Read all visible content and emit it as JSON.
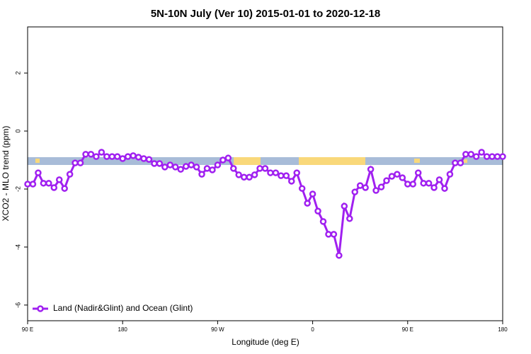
{
  "chart_data": {
    "type": "line",
    "title": "5N-10N July (Ver 10)   2015-01-01 to 2020-12-18",
    "x_label": "Longitude (deg E)",
    "y_label": "XCO2 - MLO trend (ppm)",
    "x": [
      90,
      95,
      100,
      105,
      110,
      115,
      120,
      125,
      130,
      135,
      140,
      145,
      150,
      155,
      160,
      165,
      170,
      175,
      180,
      185,
      190,
      195,
      200,
      205,
      210,
      215,
      220,
      225,
      230,
      235,
      240,
      245,
      250,
      255,
      260,
      265,
      270,
      275,
      280,
      285,
      290,
      295,
      300,
      305,
      310,
      315,
      320,
      325,
      330,
      335,
      340,
      345,
      350,
      355,
      360,
      365,
      370,
      375,
      380,
      385,
      390,
      395,
      400,
      405,
      410,
      415,
      420,
      425,
      430,
      435,
      440,
      445,
      450,
      455,
      460,
      465,
      470,
      475,
      480,
      485,
      490,
      495,
      500,
      505,
      510,
      515,
      520,
      525,
      530,
      535,
      540
    ],
    "series": [
      {
        "name": "Land (Nadir&Glint) and Ocean (Glint)",
        "color": "#a020f0",
        "values": [
          -1.83,
          -1.83,
          -1.44,
          -1.8,
          -1.8,
          -1.95,
          -1.68,
          -1.98,
          -1.49,
          -1.1,
          -1.1,
          -0.8,
          -0.8,
          -0.88,
          -0.73,
          -0.88,
          -0.88,
          -0.88,
          -0.95,
          -0.88,
          -0.85,
          -0.9,
          -0.95,
          -0.98,
          -1.12,
          -1.12,
          -1.24,
          -1.17,
          -1.24,
          -1.32,
          -1.22,
          -1.17,
          -1.24,
          -1.49,
          -1.29,
          -1.34,
          -1.17,
          -1.0,
          -0.93,
          -1.29,
          -1.51,
          -1.59,
          -1.59,
          -1.51,
          -1.29,
          -1.29,
          -1.44,
          -1.44,
          -1.54,
          -1.54,
          -1.73,
          -1.44,
          -1.98,
          -2.49,
          -2.17,
          -2.76,
          -3.12,
          -3.56,
          -3.56,
          -4.29,
          -2.59,
          -3.02,
          -2.1,
          -1.88,
          -1.95,
          -1.32,
          -2.05,
          -1.93,
          -1.71,
          -1.56,
          -1.49,
          -1.61,
          -1.83,
          -1.83,
          -1.44,
          -1.8,
          -1.8,
          -1.95,
          -1.68,
          -1.98,
          -1.49,
          -1.1,
          -1.1,
          -0.8,
          -0.8,
          -0.88,
          -0.73,
          -0.88,
          -0.88,
          -0.88,
          -0.88
        ]
      }
    ],
    "xlim": [
      90,
      540
    ],
    "xticks": [
      {
        "value": 90,
        "label": "90 E"
      },
      180,
      {
        "value": 270,
        "label": "90 W"
      },
      {
        "value": 360,
        "label": "0"
      },
      {
        "value": 450,
        "label": "90 E"
      },
      {
        "value": 540,
        "label": "180"
      }
    ],
    "ylim": [
      -6.54,
      3.59
    ],
    "yticks": [
      -6,
      -4,
      -2,
      0,
      2
    ],
    "legend": "bottom-left"
  }
}
